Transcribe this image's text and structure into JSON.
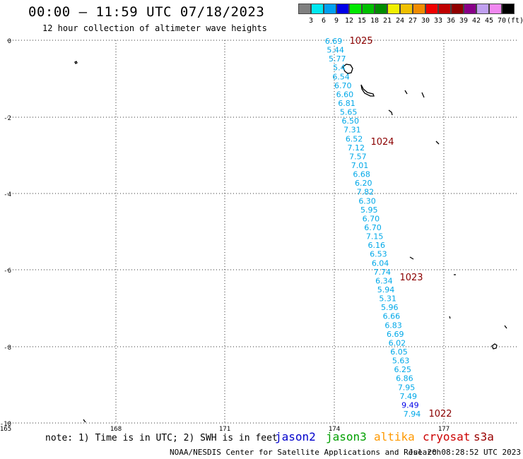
{
  "header": {
    "title": "00:00 – 11:59 UTC 07/18/2023",
    "subtitle": "12 hour collection of altimeter wave heights"
  },
  "scale": {
    "unit_label": "(ft)",
    "levels": [
      {
        "label": "3",
        "color": "#808080"
      },
      {
        "label": "6",
        "color": "#00e8f0"
      },
      {
        "label": "9",
        "color": "#00a0f0"
      },
      {
        "label": "12",
        "color": "#0000e8"
      },
      {
        "label": "15",
        "color": "#00e800"
      },
      {
        "label": "18",
        "color": "#00c000"
      },
      {
        "label": "21",
        "color": "#008c00"
      },
      {
        "label": "24",
        "color": "#f0f000"
      },
      {
        "label": "27",
        "color": "#f0c000"
      },
      {
        "label": "30",
        "color": "#f08c00"
      },
      {
        "label": "33",
        "color": "#f00000"
      },
      {
        "label": "36",
        "color": "#c00000"
      },
      {
        "label": "39",
        "color": "#900000"
      },
      {
        "label": "42",
        "color": "#880088"
      },
      {
        "label": "45",
        "color": "#c0a0f0"
      },
      {
        "label": "70",
        "color": "#f088f0"
      },
      {
        "label": "",
        "color": "#000000"
      }
    ]
  },
  "map": {
    "lat_labels": [
      "0",
      "-2",
      "-4",
      "-6",
      "-8",
      "-10"
    ],
    "lon_labels": [
      "165",
      "168",
      "171",
      "174",
      "177"
    ],
    "wave_heights_ft": [
      "6.69",
      "5.44",
      "5.77",
      "5.4",
      "6.54",
      "6.70",
      "6.60",
      "6.81",
      "5.65",
      "6.50",
      "7.31",
      "6.52",
      "7.12",
      "7.57",
      "7.01",
      "6.68",
      "6.20",
      "7.82",
      "6.30",
      "5.95",
      "6.70",
      "6.70",
      "7.15",
      "6.16",
      "6.53",
      "6.04",
      "7.74",
      "6.34",
      "5.94",
      "5.31",
      "5.96",
      "6.66",
      "6.83",
      "6.69",
      "6.02",
      "6.05",
      "5.63",
      "6.25",
      "6.86",
      "7.95",
      "7.49",
      "9.49",
      "7.94"
    ],
    "pressure_labels": [
      "1025",
      "1024",
      "1023",
      "1022"
    ]
  },
  "footer": {
    "note": "note: 1) Time is in UTC; 2) SWH is in feet",
    "satellites": [
      {
        "name": "jason2",
        "color": "#0000cc"
      },
      {
        "name": "jason3",
        "color": "#00a000"
      },
      {
        "name": "altika",
        "color": "#ff9900"
      },
      {
        "name": "cryosat",
        "color": "#cc0000"
      },
      {
        "name": "s3a",
        "color": "#990000"
      }
    ],
    "credit": "NOAA/NESDIS Center for Satellite Applications and Research",
    "timestamp": "Jul 20 08:28:52 UTC 2023"
  }
}
